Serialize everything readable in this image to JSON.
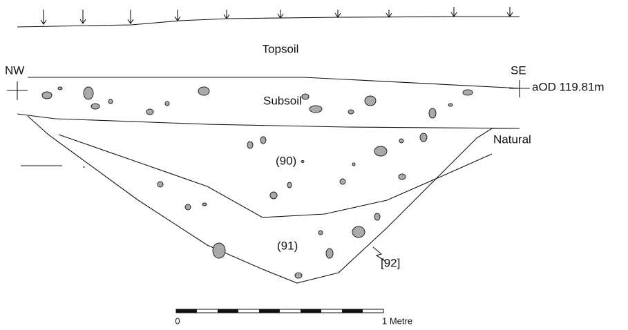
{
  "labels": {
    "topsoil": "Topsoil",
    "nw": "NW",
    "se": "SE",
    "aod": "aOD 119.81m",
    "subsoil": "Subsoil",
    "natural": "Natural",
    "fill_upper": "(90)",
    "fill_lower": "(91)",
    "cut": "[92]"
  },
  "scale": {
    "start": "0",
    "end": "1 Metre"
  }
}
